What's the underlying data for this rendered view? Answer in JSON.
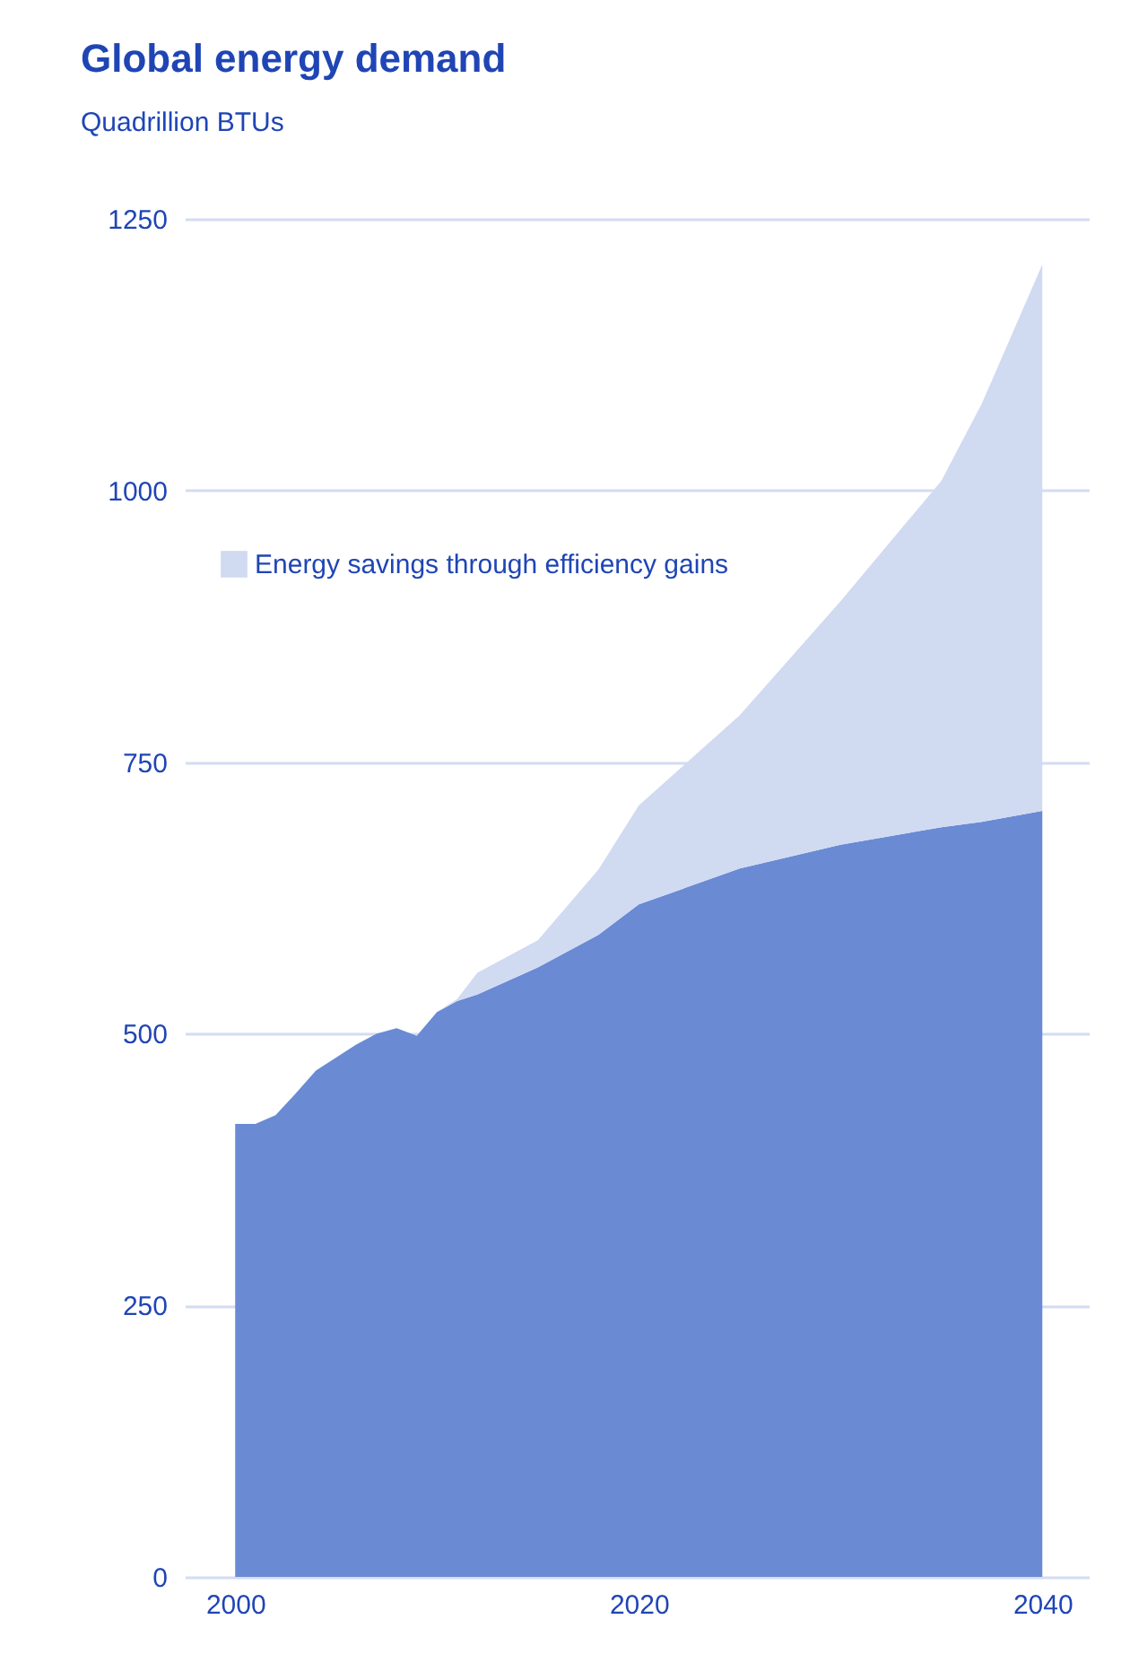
{
  "chart_data": {
    "type": "area",
    "stacked": true,
    "title": "Global energy demand",
    "subtitle": "Quadrillion BTUs",
    "x": [
      2000,
      2001,
      2002,
      2003,
      2004,
      2005,
      2006,
      2007,
      2008,
      2009,
      2010,
      2011,
      2012,
      2015,
      2018,
      2020,
      2025,
      2030,
      2035,
      2037,
      2040
    ],
    "series": [
      {
        "color": "#6a8ad4",
        "values": [
          417,
          417,
          425,
          445,
          466,
          478,
          490,
          500,
          505,
          498,
          520,
          530,
          536,
          561,
          591,
          619,
          652,
          674,
          690,
          695,
          705
        ]
      },
      {
        "name": "Energy savings through efficiency gains",
        "color": "#d0daf1",
        "values": [
          0,
          0,
          0,
          0,
          0,
          0,
          0,
          0,
          0,
          0,
          0,
          2,
          20,
          25,
          60,
          91,
          141,
          224,
          319,
          385,
          503
        ]
      }
    ],
    "xlim": [
      1997.5,
      2042.3
    ],
    "xticks": [
      2000,
      2020,
      2040
    ],
    "ylim": [
      0,
      1250
    ],
    "yticks": [
      0,
      250,
      500,
      750,
      1000,
      1250
    ],
    "grid": "y",
    "legend": "top left"
  }
}
